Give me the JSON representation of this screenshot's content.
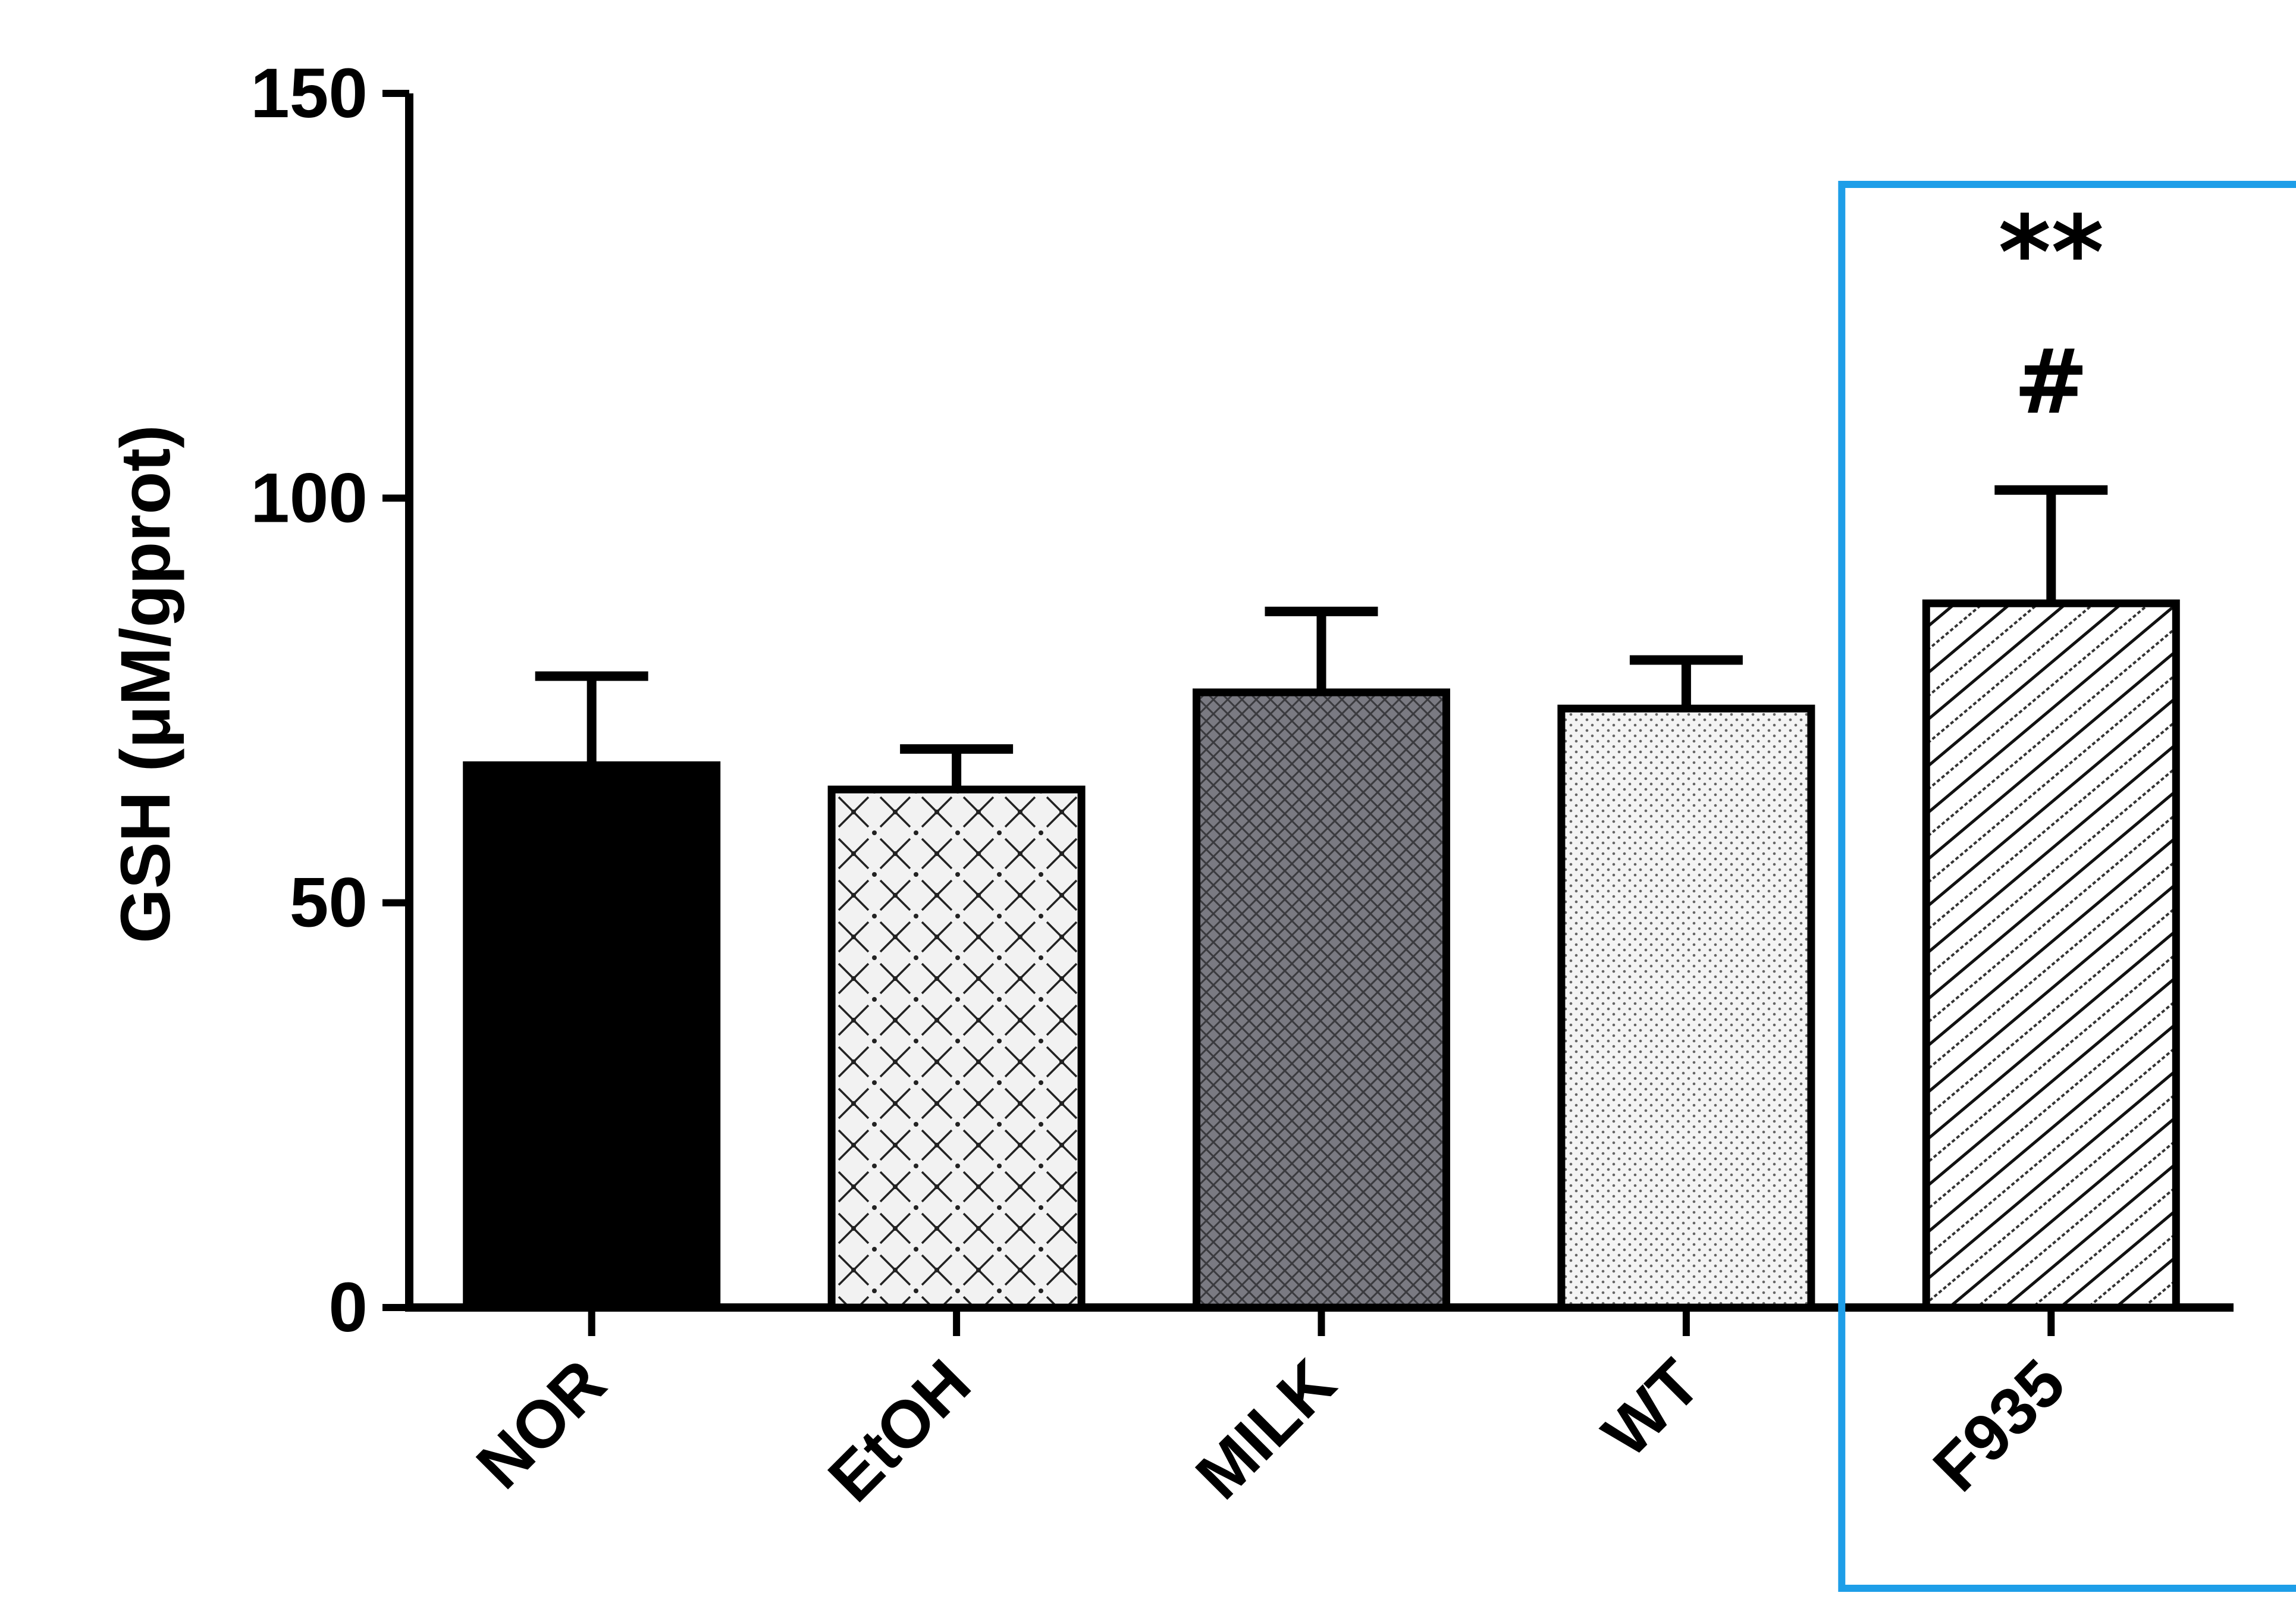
{
  "chart_data": {
    "type": "bar",
    "ylabel": "GSH (μM/gprot)",
    "xlabel": "",
    "title": "",
    "categories": [
      "NOR",
      "EtOH",
      "MILK",
      "WT",
      "F935"
    ],
    "values": [
      67,
      64,
      76,
      74,
      87
    ],
    "errors": [
      11,
      5,
      10,
      6,
      14
    ],
    "patterns": [
      "solid-black",
      "crosshatch-dots",
      "dense-crosshatch-gray",
      "fine-dots",
      "diagonal-stripes"
    ],
    "ylim": [
      0,
      150
    ],
    "yticks": [
      "0",
      "50",
      "100",
      "150"
    ],
    "grid": false,
    "annotations": [
      {
        "category": "F935",
        "lines": [
          "**",
          "#"
        ]
      }
    ],
    "highlight": {
      "category": "F935",
      "color": "#1e9ee8"
    }
  }
}
